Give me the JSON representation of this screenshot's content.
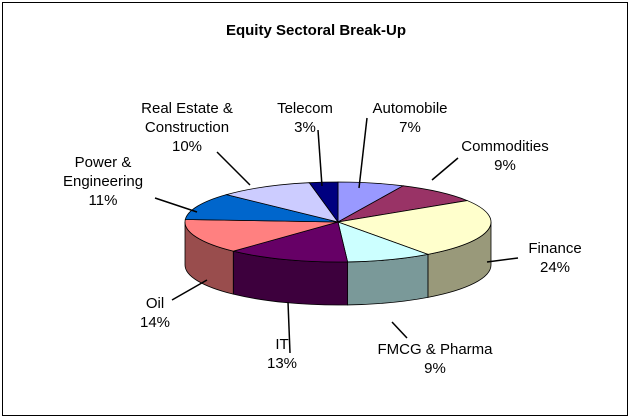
{
  "chart_data": {
    "type": "pie3d",
    "title": "Equity Sectoral Break-Up",
    "categories": [
      "Automobile",
      "Commodities",
      "Finance",
      "FMCG & Pharma",
      "IT",
      "Oil",
      "Power & Engineering",
      "Real Estate & Construction",
      "Telecom"
    ],
    "values": [
      7,
      9,
      24,
      9,
      13,
      14,
      11,
      10,
      3
    ],
    "value_labels": [
      "7%",
      "9%",
      "24%",
      "9%",
      "13%",
      "14%",
      "11%",
      "10%",
      "3%"
    ],
    "colors": [
      "#9999ff",
      "#993366",
      "#ffffcc",
      "#ccffff",
      "#660066",
      "#ff8080",
      "#0066cc",
      "#ccccff",
      "#000080"
    ]
  }
}
